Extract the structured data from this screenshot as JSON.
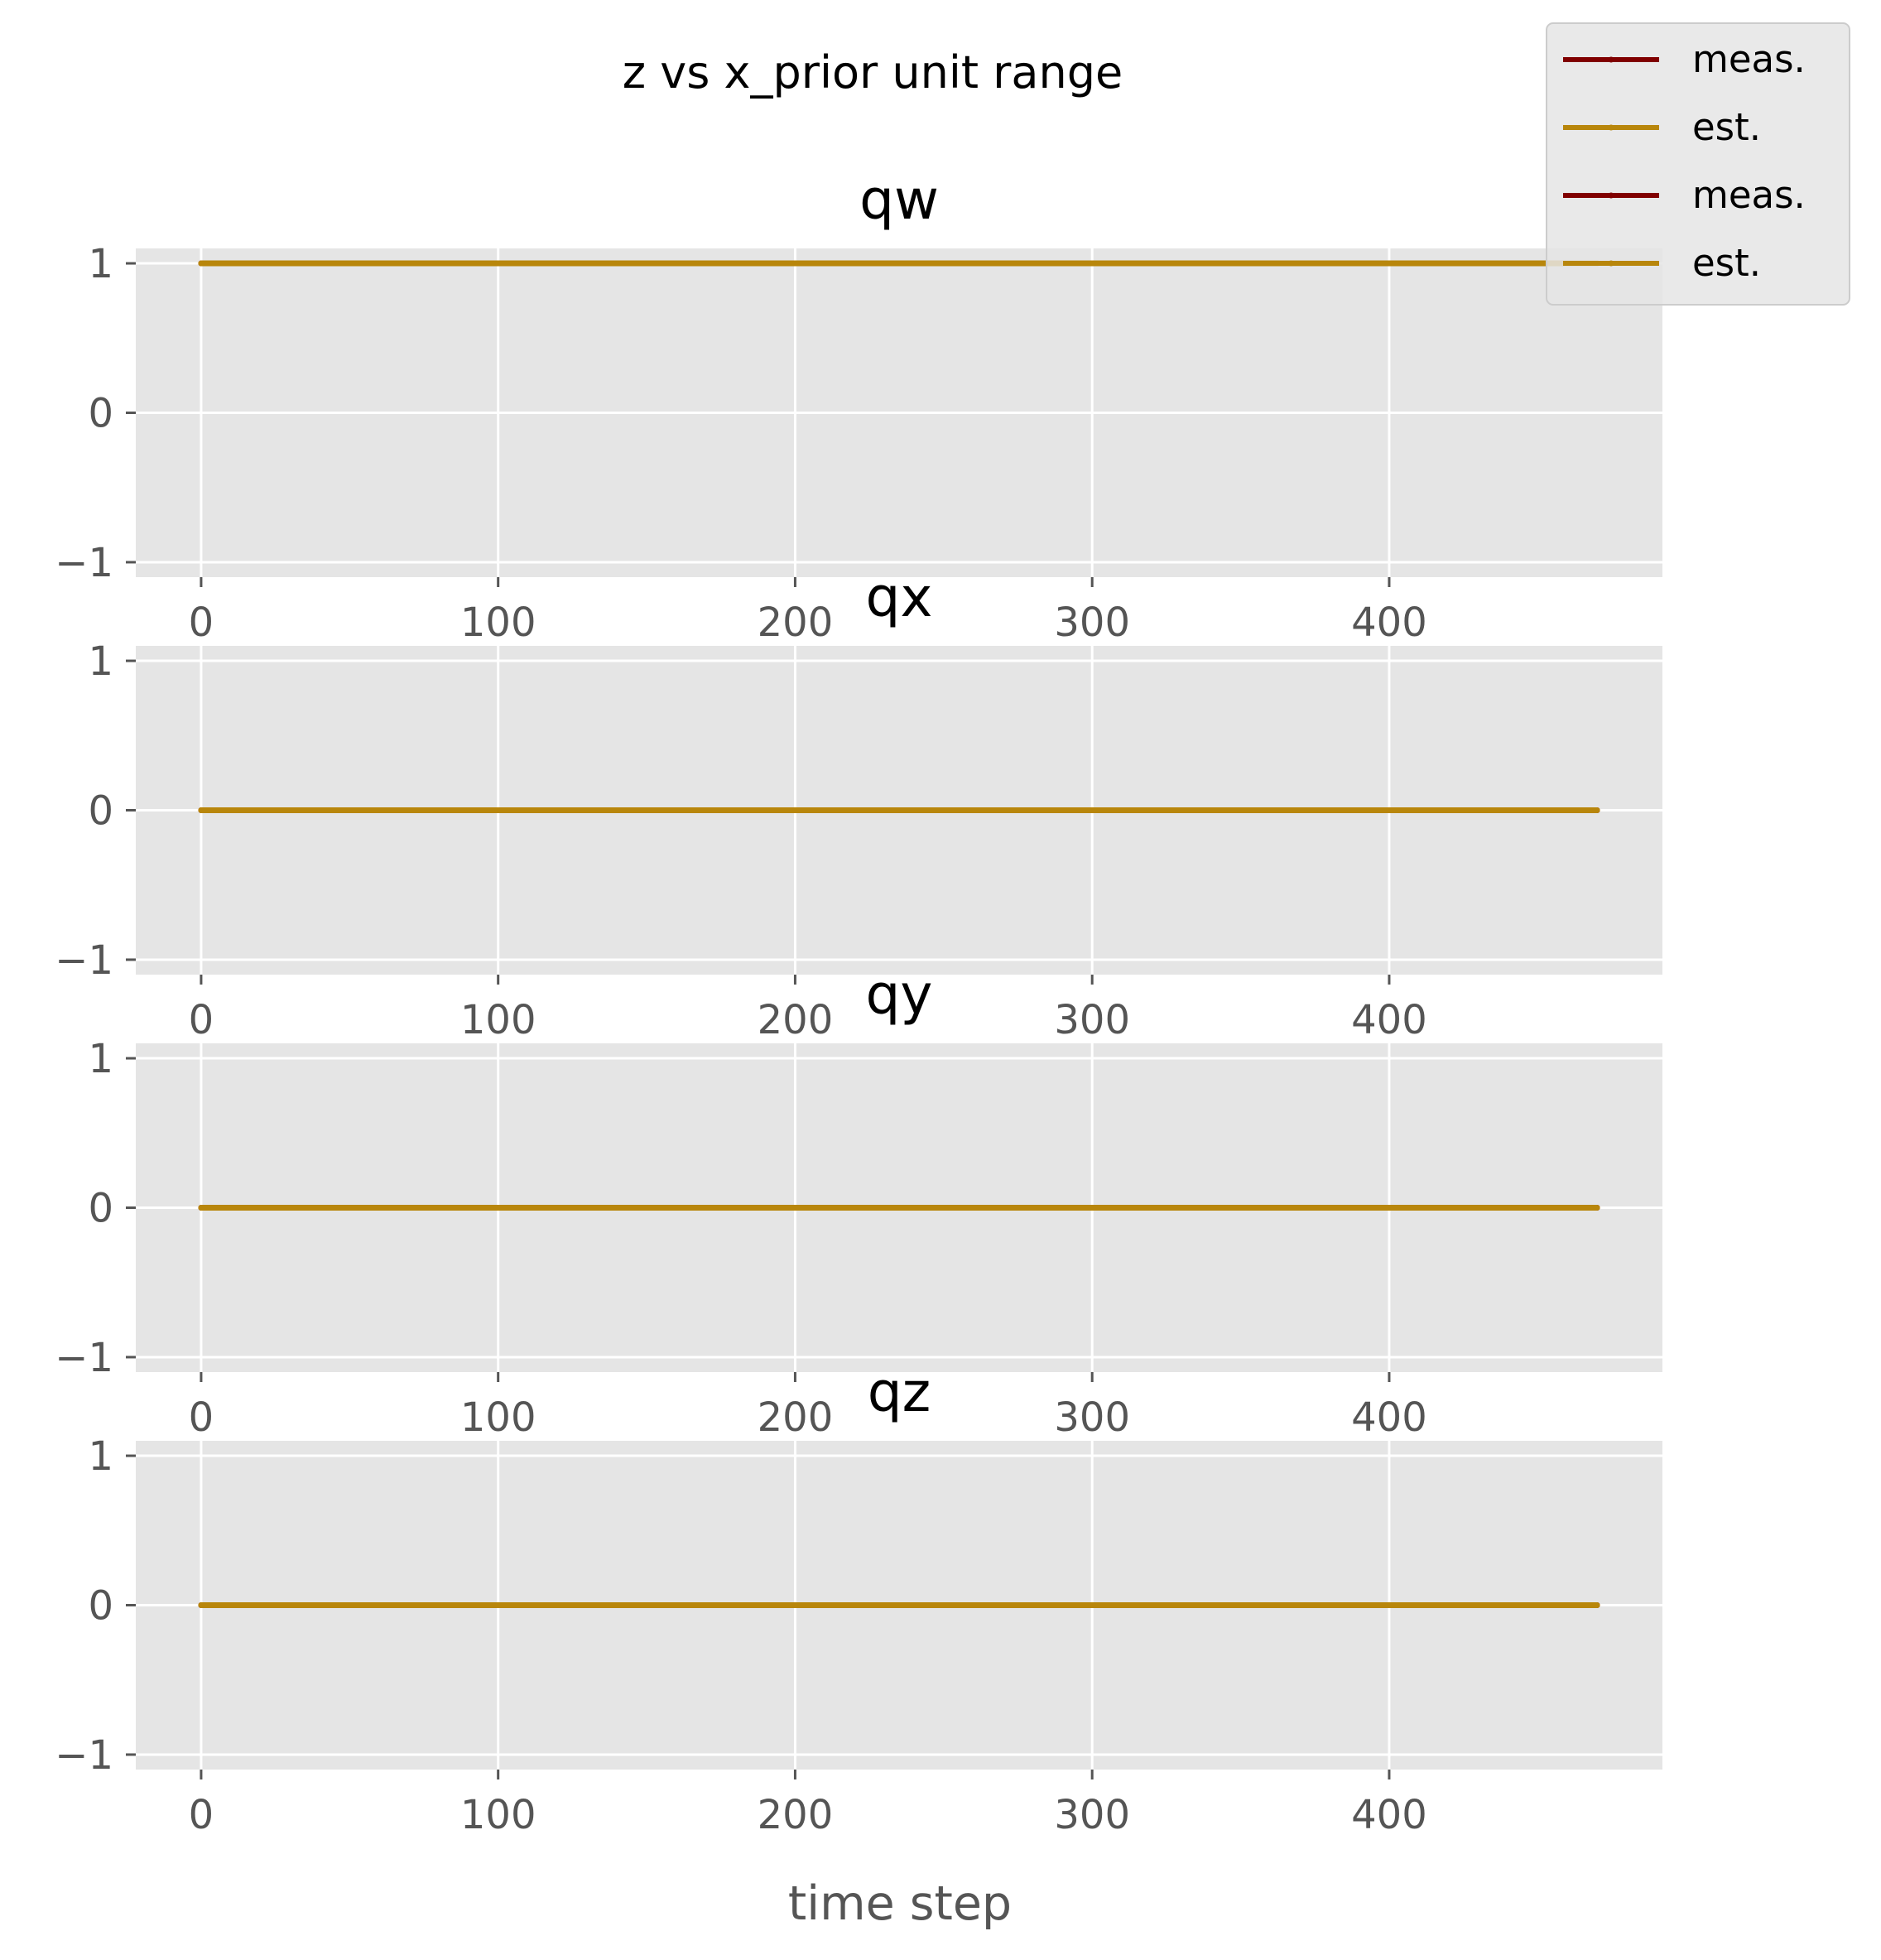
{
  "chart_data": {
    "suptitle": "z vs x_prior unit range",
    "xlabel": "time step",
    "legend_placement": "top-right",
    "legend_entries": [
      {
        "name": "meas.",
        "color": "#800000"
      },
      {
        "name": "est.",
        "color": "#b8860b"
      },
      {
        "name": "meas.",
        "color": "#800000"
      },
      {
        "name": "est.",
        "color": "#b8860b"
      }
    ],
    "colors": {
      "meas": "#800000",
      "est": "#b8860b",
      "axes_bg": "#e5e5e5",
      "grid": "#ffffff"
    },
    "subplots": [
      {
        "type": "line",
        "title": "qw",
        "xlim": [
          -22,
          492
        ],
        "ylim": [
          -1.1,
          1.1
        ],
        "xticks": [
          0,
          100,
          200,
          300,
          400
        ],
        "xtick_labels": [
          "0",
          "100",
          "200",
          "300",
          "400"
        ],
        "yticks": [
          1,
          0,
          -1
        ],
        "ytick_labels": [
          "1",
          "0",
          "−1"
        ],
        "grid": true,
        "series": [
          {
            "name": "meas.",
            "x": [
              0,
              470
            ],
            "y": [
              1,
              1
            ]
          },
          {
            "name": "est.",
            "x": [
              0,
              470
            ],
            "y": [
              1,
              1
            ]
          }
        ]
      },
      {
        "type": "line",
        "title": "qx",
        "xlim": [
          -22,
          492
        ],
        "ylim": [
          -1.1,
          1.1
        ],
        "xticks": [
          0,
          100,
          200,
          300,
          400
        ],
        "xtick_labels": [
          "0",
          "100",
          "200",
          "300",
          "400"
        ],
        "yticks": [
          1,
          0,
          -1
        ],
        "ytick_labels": [
          "1",
          "0",
          "−1"
        ],
        "grid": true,
        "series": [
          {
            "name": "meas.",
            "x": [
              0,
              470
            ],
            "y": [
              0,
              0
            ]
          },
          {
            "name": "est.",
            "x": [
              0,
              470
            ],
            "y": [
              0,
              0
            ]
          }
        ]
      },
      {
        "type": "line",
        "title": "qy",
        "xlim": [
          -22,
          492
        ],
        "ylim": [
          -1.1,
          1.1
        ],
        "xticks": [
          0,
          100,
          200,
          300,
          400
        ],
        "xtick_labels": [
          "0",
          "100",
          "200",
          "300",
          "400"
        ],
        "yticks": [
          1,
          0,
          -1
        ],
        "ytick_labels": [
          "1",
          "0",
          "−1"
        ],
        "grid": true,
        "series": [
          {
            "name": "meas.",
            "x": [
              0,
              470
            ],
            "y": [
              0,
              0
            ]
          },
          {
            "name": "est.",
            "x": [
              0,
              470
            ],
            "y": [
              0,
              0
            ]
          }
        ]
      },
      {
        "type": "line",
        "title": "qz",
        "xlim": [
          -22,
          492
        ],
        "ylim": [
          -1.1,
          1.1
        ],
        "xticks": [
          0,
          100,
          200,
          300,
          400
        ],
        "xtick_labels": [
          "0",
          "100",
          "200",
          "300",
          "400"
        ],
        "yticks": [
          1,
          0,
          -1
        ],
        "ytick_labels": [
          "1",
          "0",
          "−1"
        ],
        "grid": true,
        "series": [
          {
            "name": "meas.",
            "x": [
              0,
              470
            ],
            "y": [
              0,
              0
            ]
          },
          {
            "name": "est.",
            "x": [
              0,
              470
            ],
            "y": [
              0,
              0
            ]
          }
        ]
      }
    ]
  }
}
